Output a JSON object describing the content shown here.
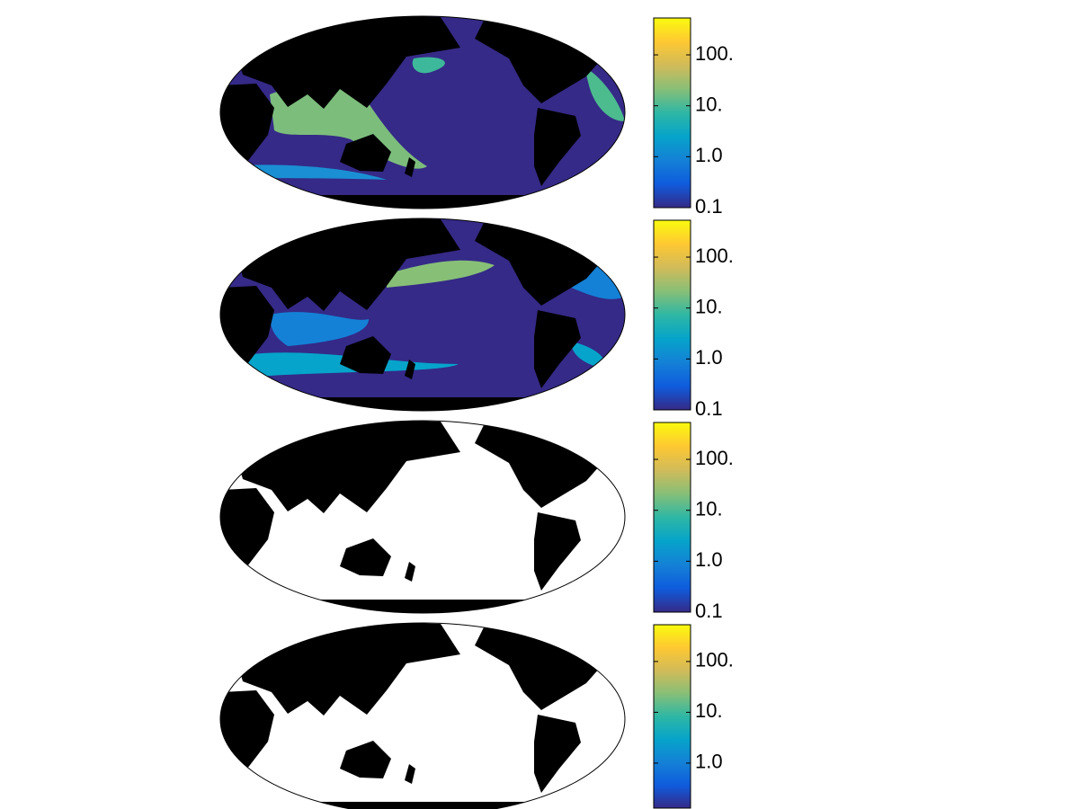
{
  "panels": [
    {
      "colorbar": {
        "scale": "log",
        "lim": [
          0.1,
          530
        ],
        "colors": [
          "#352a87",
          "#0f5cdd",
          "#1481d6",
          "#06a4ca",
          "#2eb7a4",
          "#87bf77",
          "#d1bb59",
          "#fec832",
          "#f9fb0e"
        ],
        "ticks": [
          0.1,
          {
            "value": 1,
            "label": "1.0"
          },
          {
            "value": 10,
            "label": "10."
          },
          {
            "value": 100,
            "label": "100."
          }
        ]
      }
    },
    {
      "colorbar": {
        "scale": "log",
        "lim": [
          0.1,
          530
        ],
        "colors": [
          "#352a87",
          "#0f5cdd",
          "#1481d6",
          "#06a4ca",
          "#2eb7a4",
          "#87bf77",
          "#d1bb59",
          "#fec832",
          "#f9fb0e"
        ],
        "ticks": [
          0.1,
          {
            "value": 1,
            "label": "1.0"
          },
          {
            "value": 10,
            "label": "10."
          },
          {
            "value": 100,
            "label": "100."
          }
        ]
      }
    },
    {
      "colorbar": {
        "scale": "log",
        "lim": [
          0.1,
          530
        ],
        "colors": [
          "#352a87",
          "#0f5cdd",
          "#1481d6",
          "#06a4ca",
          "#2eb7a4",
          "#87bf77",
          "#d1bb59",
          "#fec832",
          "#f9fb0e"
        ],
        "ticks": [
          0.1,
          {
            "value": 1,
            "label": "1.0"
          },
          {
            "value": 10,
            "label": "10."
          },
          {
            "value": 100,
            "label": "100."
          }
        ]
      }
    },
    {
      "colorbar": {
        "scale": "log",
        "lim": [
          0.13,
          530
        ],
        "colors": [
          "#352a87",
          "#0f5cdd",
          "#1481d6",
          "#06a4ca",
          "#2eb7a4",
          "#87bf77",
          "#d1bb59",
          "#fec832",
          "#f9fb0e"
        ],
        "ticks": [
          {
            "value": 1,
            "label": "1.0"
          },
          {
            "value": 10,
            "label": "10."
          },
          {
            "value": 100,
            "label": "100."
          }
        ]
      }
    }
  ]
}
